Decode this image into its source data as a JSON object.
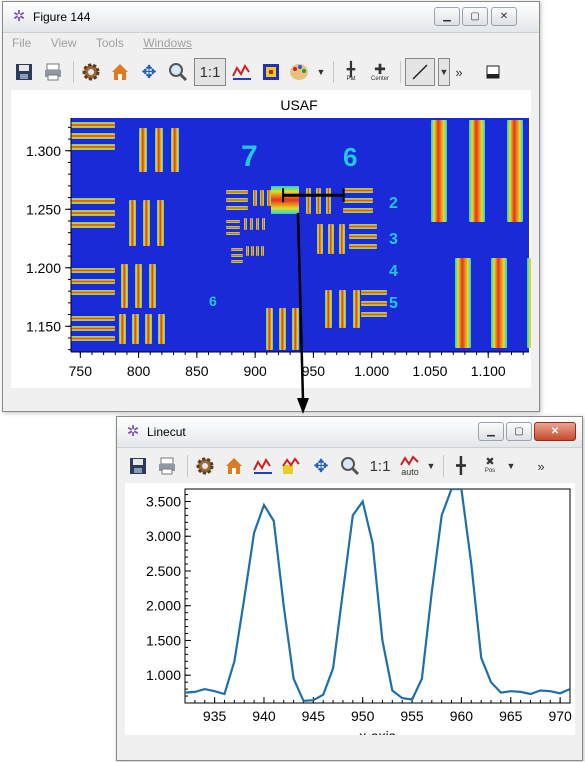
{
  "figure_window": {
    "title": "Figure 144",
    "menu": [
      "File",
      "View",
      "Tools",
      "Windows"
    ],
    "toolbar": {
      "one_to_one": "1:1",
      "pat_label": "Pat",
      "center_label": "Center",
      "overflow": "»"
    },
    "plot_title": "USAF",
    "x_ticks": [
      "750",
      "800",
      "850",
      "900",
      "950",
      "1.000",
      "1.050",
      "1.100"
    ],
    "y_ticks": [
      "1.300",
      "1.250",
      "1.200",
      "1.150"
    ],
    "x_range": [
      742,
      1135
    ],
    "y_range": [
      1.128,
      1.328
    ],
    "image_colormap": "jet",
    "linecut": {
      "x_start": 924,
      "x_end": 976,
      "y": 1.262
    }
  },
  "linecut_window": {
    "title": "Linecut",
    "toolbar": {
      "one_to_one": "1:1",
      "auto_label": "auto",
      "pos_label": "Pos",
      "overflow": "»"
    },
    "xlabel": "x-axis"
  },
  "chart_data": {
    "type": "line",
    "title": "",
    "xlabel": "x-axis",
    "ylabel": "",
    "xlim": [
      932,
      971
    ],
    "ylim": [
      0.6,
      3.68
    ],
    "x_ticks": [
      "935",
      "940",
      "945",
      "950",
      "955",
      "960",
      "965",
      "970"
    ],
    "y_ticks": [
      "3.500",
      "3.000",
      "2.500",
      "2.000",
      "1.500",
      "1.000"
    ],
    "grid": false,
    "series": [
      {
        "color": "#1f6fa8",
        "x": [
          932,
          933,
          934,
          935,
          936,
          937,
          938,
          939,
          940,
          941,
          942,
          943,
          944,
          945,
          946,
          947,
          948,
          949,
          950,
          951,
          952,
          953,
          954,
          955,
          956,
          957,
          958,
          959,
          960,
          961,
          962,
          963,
          964,
          965,
          966,
          967,
          968,
          969,
          970,
          971
        ],
        "y": [
          0.75,
          0.76,
          0.8,
          0.77,
          0.73,
          1.2,
          2.1,
          3.05,
          3.45,
          3.22,
          2.0,
          0.95,
          0.63,
          0.64,
          0.72,
          1.1,
          2.2,
          3.3,
          3.5,
          2.9,
          1.5,
          0.78,
          0.67,
          0.65,
          0.95,
          2.2,
          3.3,
          3.68,
          3.68,
          2.6,
          1.25,
          0.9,
          0.75,
          0.77,
          0.76,
          0.73,
          0.78,
          0.77,
          0.74,
          0.8
        ]
      }
    ]
  }
}
